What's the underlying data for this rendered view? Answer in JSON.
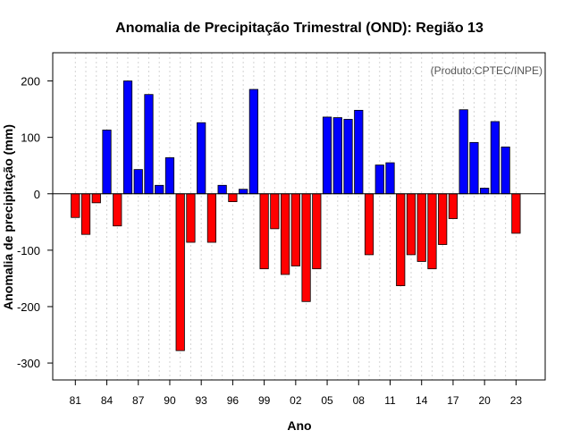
{
  "chart_data": {
    "type": "bar",
    "title": "Anomalia de Precipitação Trimestral (OND): Região 13",
    "xlabel": "Ano",
    "ylabel": "Anomalia de precipitação (mm)",
    "credit": "(Produto:CPTEC/INPE)",
    "ylim": [
      -330,
      250
    ],
    "yticks": [
      200,
      100,
      0,
      -100,
      -200,
      -300
    ],
    "ytick_labels": [
      "200",
      "100",
      "0",
      "-100",
      "-200",
      "-300"
    ],
    "xtick_labels": [
      "81",
      "84",
      "87",
      "90",
      "93",
      "96",
      "99",
      "02",
      "05",
      "08",
      "11",
      "14",
      "17",
      "20",
      "23"
    ],
    "xtick_years": [
      1981,
      1984,
      1987,
      1990,
      1993,
      1996,
      1999,
      2002,
      2005,
      2008,
      2011,
      2014,
      2017,
      2020,
      2023
    ],
    "positive_color": "#0000ff",
    "negative_color": "#ff0000",
    "years": [
      1981,
      1982,
      1983,
      1984,
      1985,
      1986,
      1987,
      1988,
      1989,
      1990,
      1991,
      1992,
      1993,
      1994,
      1995,
      1996,
      1997,
      1998,
      1999,
      2000,
      2001,
      2002,
      2003,
      2004,
      2005,
      2006,
      2007,
      2008,
      2009,
      2010,
      2011,
      2012,
      2013,
      2014,
      2015,
      2016,
      2017,
      2018,
      2019,
      2020,
      2021,
      2022,
      2023
    ],
    "values": [
      -42,
      -72,
      -16,
      113,
      -57,
      200,
      43,
      176,
      15,
      64,
      -278,
      -86,
      126,
      -86,
      15,
      -14,
      8,
      185,
      -133,
      -62,
      -143,
      -128,
      -191,
      -133,
      136,
      135,
      132,
      148,
      -108,
      51,
      55,
      -163,
      -108,
      -120,
      -133,
      -90,
      -44,
      149,
      91,
      10,
      128,
      83,
      -70
    ]
  }
}
